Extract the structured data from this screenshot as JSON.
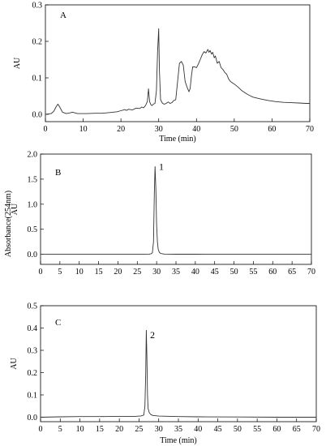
{
  "figure": {
    "shared_ylabel": "Absorbance(254nm)"
  },
  "chart_data": [
    {
      "type": "line",
      "panel_label": "A",
      "xlabel": "Time (min)",
      "ylabel": "AU",
      "xlim": [
        0,
        70
      ],
      "ylim": [
        -0.02,
        0.3
      ],
      "xticks": [
        0,
        10,
        20,
        30,
        40,
        50,
        60,
        70
      ],
      "yticks": [
        0.0,
        0.1,
        0.2,
        0.3
      ],
      "ytick_labels": [
        "0.0",
        "0.1",
        "0.2",
        "0.3"
      ],
      "x": [
        0,
        1.5,
        2.2,
        2.8,
        3.3,
        3.8,
        4.5,
        5.5,
        6.5,
        7.2,
        7.8,
        8.5,
        9.5,
        11,
        13,
        15,
        17,
        19,
        20,
        21,
        21.5,
        22,
        23,
        24,
        25,
        25.5,
        26,
        26.5,
        27,
        27.3,
        27.6,
        27.9,
        28.2,
        28.6,
        29,
        29.4,
        29.7,
        30.0,
        30.2,
        30.5,
        31,
        31.5,
        32,
        32.5,
        33,
        33.5,
        34,
        34.5,
        35,
        35.5,
        36,
        36.5,
        37,
        37.5,
        38,
        38.3,
        38.7,
        39,
        39.5,
        40,
        40.5,
        41,
        41.5,
        42,
        42.5,
        43,
        43.3,
        43.6,
        44,
        44.3,
        44.7,
        45,
        45.5,
        46,
        46.5,
        47,
        47.5,
        48,
        48.5,
        49,
        50,
        51,
        52,
        53,
        54,
        55,
        57,
        59,
        61,
        63,
        65,
        67,
        69,
        70
      ],
      "y": [
        0.0,
        0.002,
        0.008,
        0.02,
        0.028,
        0.02,
        0.006,
        0.002,
        0.004,
        0.006,
        0.004,
        0.002,
        0.002,
        0.002,
        0.003,
        0.003,
        0.005,
        0.007,
        0.01,
        0.013,
        0.011,
        0.014,
        0.012,
        0.017,
        0.016,
        0.02,
        0.018,
        0.024,
        0.035,
        0.07,
        0.035,
        0.027,
        0.024,
        0.028,
        0.03,
        0.065,
        0.17,
        0.235,
        0.12,
        0.04,
        0.03,
        0.028,
        0.03,
        0.034,
        0.03,
        0.032,
        0.038,
        0.04,
        0.09,
        0.14,
        0.145,
        0.135,
        0.09,
        0.075,
        0.062,
        0.07,
        0.108,
        0.13,
        0.13,
        0.128,
        0.138,
        0.15,
        0.163,
        0.172,
        0.168,
        0.178,
        0.17,
        0.175,
        0.165,
        0.17,
        0.155,
        0.16,
        0.14,
        0.145,
        0.128,
        0.123,
        0.115,
        0.11,
        0.097,
        0.09,
        0.083,
        0.075,
        0.065,
        0.058,
        0.052,
        0.047,
        0.042,
        0.038,
        0.035,
        0.033,
        0.032,
        0.031,
        0.03,
        0.03
      ]
    },
    {
      "type": "line",
      "panel_label": "B",
      "peak_label": "1",
      "peak_label_at": [
        30.6,
        1.75
      ],
      "xlabel": "",
      "ylabel": "AU",
      "xlim": [
        0,
        70
      ],
      "ylim": [
        -0.2,
        2.0
      ],
      "xticks": [
        0,
        5,
        10,
        15,
        20,
        25,
        30,
        35,
        40,
        45,
        50,
        55,
        60,
        65,
        70
      ],
      "yticks": [
        0.0,
        0.5,
        1.0,
        1.5,
        2.0
      ],
      "ytick_labels": [
        "0.0",
        "0.5",
        "1.0",
        "1.5",
        "2.0"
      ],
      "x": [
        0,
        10,
        20,
        25,
        27,
        28,
        28.5,
        28.9,
        29.2,
        29.4,
        29.6,
        29.8,
        30.0,
        30.2,
        30.4,
        30.7,
        31,
        31.5,
        32,
        35,
        40,
        50,
        60,
        70
      ],
      "y": [
        0.0,
        0.0,
        0.0,
        0.0,
        0.0,
        0.004,
        0.008,
        0.03,
        0.25,
        1.2,
        1.75,
        1.3,
        0.6,
        0.25,
        0.1,
        0.04,
        0.02,
        0.01,
        0.005,
        0.003,
        0.002,
        0.0,
        0.0,
        0.0
      ]
    },
    {
      "type": "line",
      "panel_label": "C",
      "peak_label": "2",
      "peak_label_at": [
        27.8,
        0.37
      ],
      "xlabel": "Time (min)",
      "ylabel": "AU",
      "xlim": [
        0,
        70
      ],
      "ylim": [
        -0.02,
        0.5
      ],
      "xticks": [
        0,
        5,
        10,
        15,
        20,
        25,
        30,
        35,
        40,
        45,
        50,
        55,
        60,
        65,
        70
      ],
      "yticks": [
        0.0,
        0.1,
        0.2,
        0.3,
        0.4,
        0.5
      ],
      "ytick_labels": [
        "0.0",
        "0.1",
        "0.2",
        "0.3",
        "0.4",
        "0.5"
      ],
      "x": [
        0,
        5,
        10,
        15,
        20,
        24,
        25.5,
        26.2,
        26.5,
        26.7,
        26.85,
        27.0,
        27.15,
        27.3,
        27.6,
        28,
        28.5,
        30,
        35,
        40,
        50,
        60,
        70
      ],
      "y": [
        0.0,
        0.002,
        0.003,
        0.003,
        0.004,
        0.004,
        0.006,
        0.01,
        0.05,
        0.2,
        0.39,
        0.28,
        0.1,
        0.04,
        0.02,
        0.012,
        0.008,
        0.005,
        0.003,
        0.002,
        0.001,
        0.0,
        0.0
      ]
    }
  ]
}
